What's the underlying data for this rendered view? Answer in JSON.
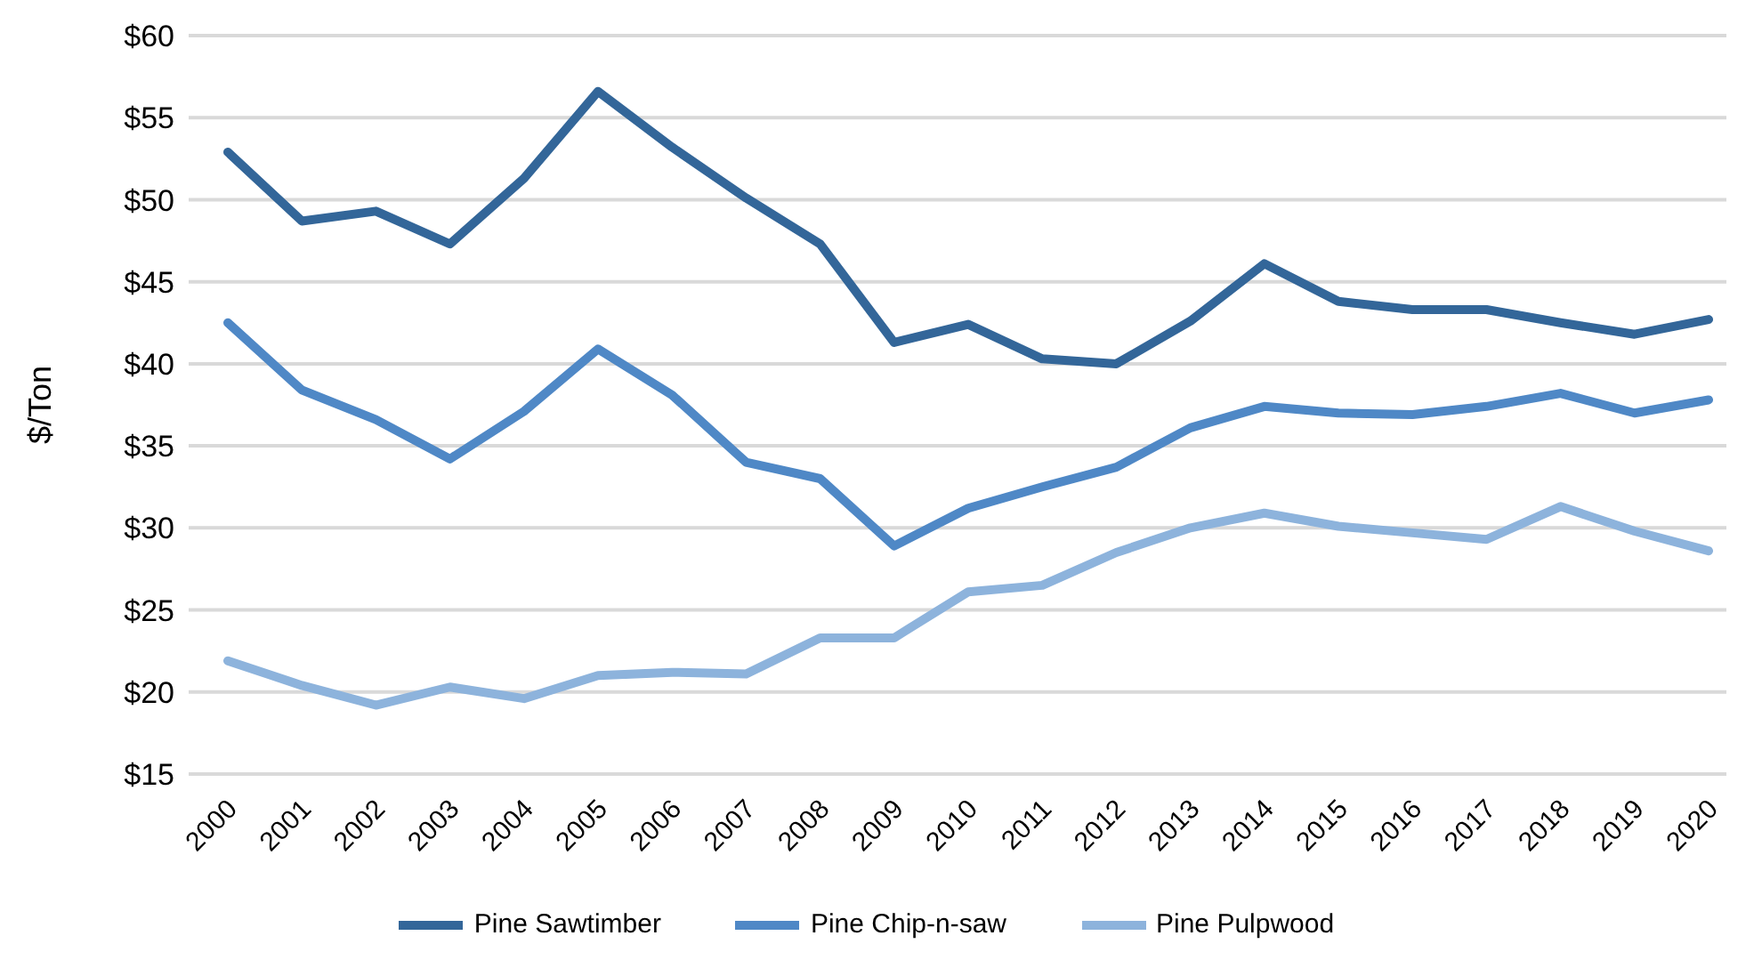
{
  "chart_data": {
    "type": "line",
    "ylabel": "$/Ton",
    "categories": [
      "2000",
      "2001",
      "2002",
      "2003",
      "2004",
      "2005",
      "2006",
      "2007",
      "2008",
      "2009",
      "2010",
      "2011",
      "2012",
      "2013",
      "2014",
      "2015",
      "2016",
      "2017",
      "2018",
      "2019",
      "2020"
    ],
    "series": [
      {
        "name": "Pine Sawtimber",
        "color": "#336699",
        "values": [
          52.9,
          48.7,
          49.3,
          47.3,
          51.3,
          56.6,
          53.2,
          50.1,
          47.3,
          41.3,
          42.4,
          40.3,
          40.0,
          42.6,
          46.1,
          43.8,
          43.3,
          43.3,
          42.5,
          41.8,
          42.7
        ]
      },
      {
        "name": "Pine Chip-n-saw",
        "color": "#4f88c6",
        "values": [
          42.5,
          38.4,
          36.6,
          34.2,
          37.1,
          40.9,
          38.1,
          34.0,
          33.0,
          28.9,
          31.2,
          32.5,
          33.7,
          36.1,
          37.4,
          37.0,
          36.9,
          37.4,
          38.2,
          37.0,
          37.8
        ]
      },
      {
        "name": "Pine Pulpwood",
        "color": "#8db3dc",
        "values": [
          21.9,
          20.4,
          19.2,
          20.3,
          19.6,
          21.0,
          21.2,
          21.1,
          23.3,
          23.3,
          26.1,
          26.5,
          28.5,
          30.0,
          30.9,
          30.1,
          29.7,
          29.3,
          31.3,
          29.8,
          28.6
        ]
      }
    ],
    "ylim": [
      15,
      60
    ],
    "yticks": [
      {
        "value": 15,
        "label": "$15"
      },
      {
        "value": 20,
        "label": "$20"
      },
      {
        "value": 25,
        "label": "$25"
      },
      {
        "value": 30,
        "label": "$30"
      },
      {
        "value": 35,
        "label": "$35"
      },
      {
        "value": 40,
        "label": "$40"
      },
      {
        "value": 45,
        "label": "$45"
      },
      {
        "value": 50,
        "label": "$50"
      },
      {
        "value": 55,
        "label": "$55"
      },
      {
        "value": 60,
        "label": "$60"
      }
    ],
    "grid": "y",
    "legend": "bottom",
    "marker": "none",
    "line_style": "solid"
  }
}
